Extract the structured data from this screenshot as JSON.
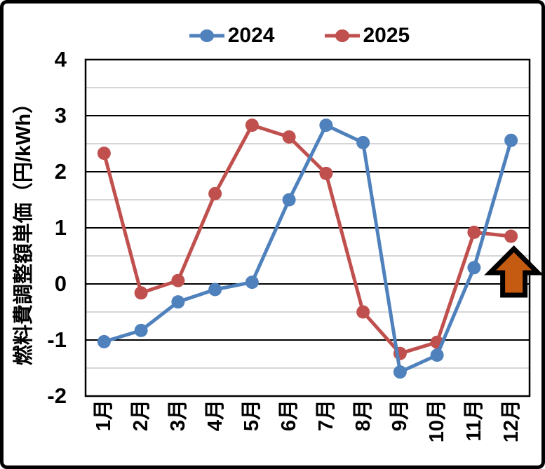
{
  "chart_data": {
    "type": "line",
    "title": "",
    "ylabel": "燃料費調整額単価（円/kWh）",
    "categories": [
      "1月",
      "2月",
      "3月",
      "4月",
      "5月",
      "6月",
      "7月",
      "8月",
      "9月",
      "10月",
      "11月",
      "12月"
    ],
    "series": [
      {
        "name": "2024",
        "color": "#4F81BD",
        "values": [
          -1.03,
          -0.83,
          -0.32,
          -0.1,
          0.03,
          1.5,
          2.83,
          2.52,
          -1.57,
          -1.27,
          0.29,
          2.56
        ]
      },
      {
        "name": "2025",
        "color": "#C0504D",
        "values": [
          2.33,
          -0.16,
          0.06,
          1.61,
          2.83,
          2.62,
          1.97,
          -0.5,
          -1.24,
          -1.04,
          0.92,
          0.85
        ]
      }
    ],
    "ylim": [
      -2,
      4
    ],
    "ytick_step": 1,
    "minor_step": 0.5,
    "yticks": [
      "4",
      "3",
      "2",
      "1",
      "0",
      "-1",
      "-2"
    ],
    "grid": {
      "major_color": "#000000",
      "minor_color": "#C8C8C8"
    },
    "legend_position": "top",
    "axis_color": "#000000",
    "annotation": {
      "type": "block-arrow-up",
      "month": "12月",
      "fill": "#C55A11",
      "outline": "#000000"
    }
  }
}
